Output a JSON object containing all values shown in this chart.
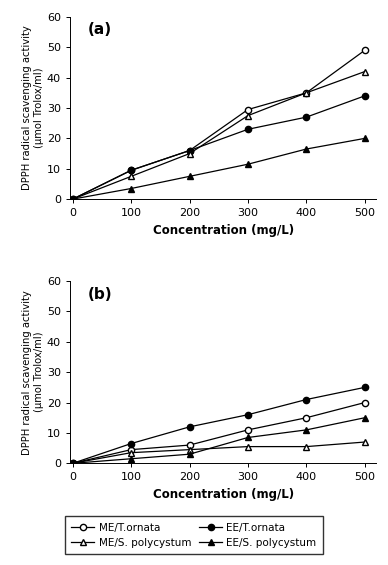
{
  "x": [
    0,
    100,
    200,
    300,
    400,
    500
  ],
  "panel_a": {
    "ME_T_ornata": [
      0,
      9.5,
      16.0,
      29.5,
      35.0,
      49.0
    ],
    "EE_T_ornata": [
      0,
      9.5,
      16.0,
      23.0,
      27.0,
      34.0
    ],
    "ME_S_polycystum": [
      0,
      7.5,
      15.0,
      27.5,
      35.0,
      42.0
    ],
    "EE_S_polycystum": [
      0,
      3.5,
      7.5,
      11.5,
      16.5,
      20.0
    ]
  },
  "panel_b": {
    "ME_T_ornata": [
      0,
      4.5,
      6.0,
      11.0,
      15.0,
      20.0
    ],
    "EE_T_ornata": [
      0,
      6.5,
      12.0,
      16.0,
      21.0,
      25.0
    ],
    "ME_S_polycystum": [
      0,
      3.5,
      4.5,
      5.5,
      5.5,
      7.0
    ],
    "EE_S_polycystum": [
      0,
      1.5,
      3.0,
      8.5,
      11.0,
      15.0
    ]
  },
  "ylabel": "DPPH radical scavenging activity\n(μmol Trolox/ml)",
  "xlabel": "Concentration (mg/L)",
  "ylim": [
    0,
    60
  ],
  "yticks": [
    0,
    10,
    20,
    30,
    40,
    50,
    60
  ],
  "xticks": [
    0,
    100,
    200,
    300,
    400,
    500
  ],
  "legend_labels": [
    "ME/T.ornata",
    "ME/S. polycystum",
    "EE/T.ornata",
    "EE/S. polycystum"
  ],
  "line_color": "black",
  "panel_labels": [
    "(a)",
    "(b)"
  ]
}
